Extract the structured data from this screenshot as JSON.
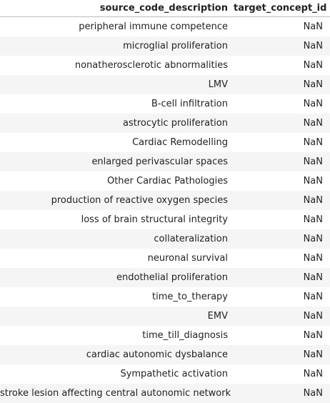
{
  "table": {
    "columns": [
      "source_code_description",
      "target_concept_id"
    ],
    "rows": [
      [
        "peripheral immune competence",
        "NaN"
      ],
      [
        "microglial proliferation",
        "NaN"
      ],
      [
        "nonatherosclerotic abnormalities",
        "NaN"
      ],
      [
        "LMV",
        "NaN"
      ],
      [
        "B-cell infiltration",
        "NaN"
      ],
      [
        "astrocytic proliferation",
        "NaN"
      ],
      [
        "Cardiac Remodelling",
        "NaN"
      ],
      [
        "enlarged perivascular spaces",
        "NaN"
      ],
      [
        "Other Cardiac Pathologies",
        "NaN"
      ],
      [
        "production of reactive oxygen species",
        "NaN"
      ],
      [
        "loss of brain structural integrity",
        "NaN"
      ],
      [
        "collateralization",
        "NaN"
      ],
      [
        "neuronal survival",
        "NaN"
      ],
      [
        "endothelial proliferation",
        "NaN"
      ],
      [
        "time_to_therapy",
        "NaN"
      ],
      [
        "EMV",
        "NaN"
      ],
      [
        "time_till_diagnosis",
        "NaN"
      ],
      [
        "cardiac autonomic dysbalance",
        "NaN"
      ],
      [
        "Sympathetic activation",
        "NaN"
      ],
      [
        "stroke lesion affecting central autonomic network",
        "NaN"
      ]
    ]
  }
}
